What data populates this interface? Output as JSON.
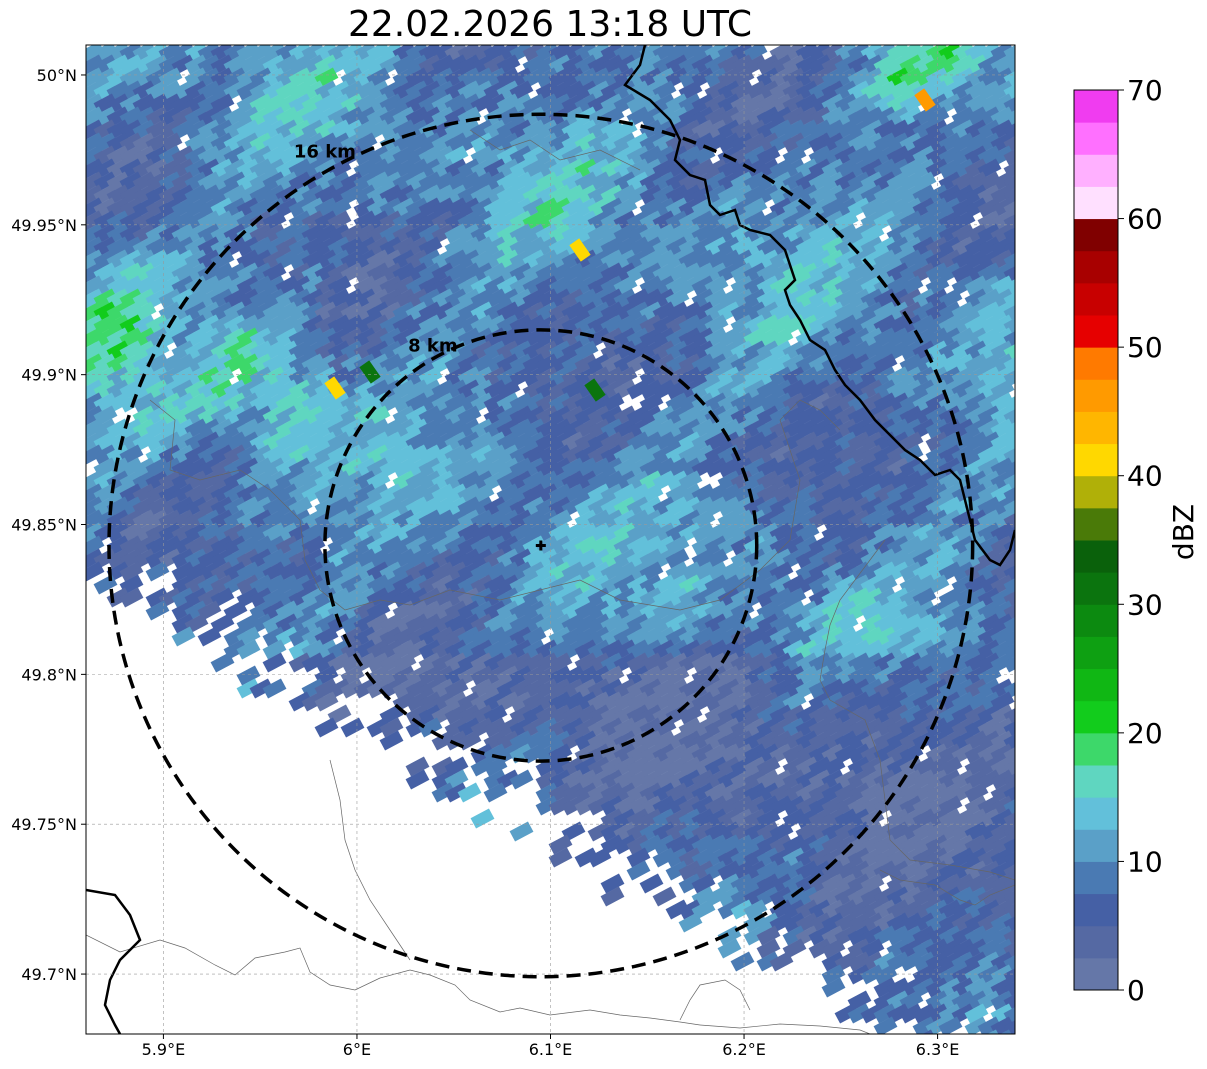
{
  "title": "22.02.2026 13:18 UTC",
  "map": {
    "lon_range": [
      5.86,
      6.34
    ],
    "lat_range": [
      49.68,
      50.01
    ],
    "radar_center": {
      "lon": 6.095,
      "lat": 49.843
    },
    "lon_ticks": [
      {
        "value": 5.9,
        "label": "5.9°E"
      },
      {
        "value": 6.0,
        "label": "6°E"
      },
      {
        "value": 6.1,
        "label": "6.1°E"
      },
      {
        "value": 6.2,
        "label": "6.2°E"
      },
      {
        "value": 6.3,
        "label": "6.3°E"
      }
    ],
    "lat_ticks": [
      {
        "value": 50.0,
        "label": "50°N"
      },
      {
        "value": 49.95,
        "label": "49.95°N"
      },
      {
        "value": 49.9,
        "label": "49.9°N"
      },
      {
        "value": 49.85,
        "label": "49.85°N"
      },
      {
        "value": 49.8,
        "label": "49.8°N"
      },
      {
        "value": 49.75,
        "label": "49.75°N"
      },
      {
        "value": 49.7,
        "label": "49.7°N"
      }
    ],
    "range_rings": [
      {
        "radius_km": 8,
        "label": "8 km"
      },
      {
        "radius_km": 16,
        "label": "16 km"
      }
    ],
    "gridlines": true
  },
  "colorbar": {
    "label": "dBZ",
    "min": 0,
    "max": 70,
    "ticks": [
      {
        "value": 0,
        "label": "0"
      },
      {
        "value": 10,
        "label": "10"
      },
      {
        "value": 20,
        "label": "20"
      },
      {
        "value": 30,
        "label": "30"
      },
      {
        "value": 40,
        "label": "40"
      },
      {
        "value": 50,
        "label": "50"
      },
      {
        "value": 60,
        "label": "60"
      },
      {
        "value": 70,
        "label": "70"
      }
    ],
    "colors": [
      "#6577a8",
      "#5569a3",
      "#4560a5",
      "#4a7ab3",
      "#5aa0c8",
      "#62c0da",
      "#5fd6c0",
      "#3dd86a",
      "#12cc1c",
      "#10b714",
      "#0ea012",
      "#0c8a10",
      "#0b740e",
      "#0a610b",
      "#4a7a08",
      "#b0b008",
      "#ffd800",
      "#ffb600",
      "#ff9a00",
      "#ff7a00",
      "#e60000",
      "#c80000",
      "#a80000",
      "#800000",
      "#ffe0ff",
      "#ffb0ff",
      "#ff70ff",
      "#f03cf0"
    ]
  },
  "reflectivity_field": {
    "description_levels_dbz": [
      5,
      10,
      15,
      20,
      25
    ]
  }
}
